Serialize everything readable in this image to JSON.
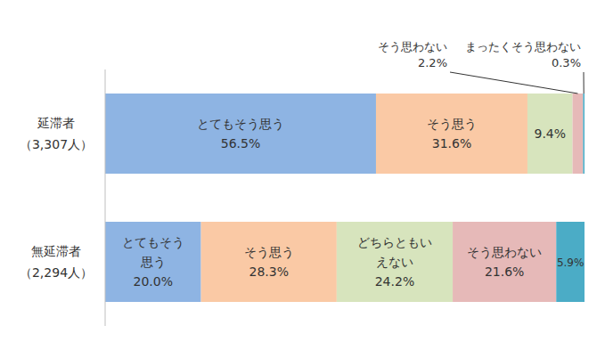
{
  "chart_data": {
    "type": "bar",
    "orientation": "horizontal",
    "stacked": true,
    "data_labels": true,
    "tick_labels": "y",
    "grid": false,
    "xlim": [
      0,
      100
    ],
    "categories": [
      "延滞者（3,307人）",
      "無延滞者（2,294人）"
    ],
    "series": [
      {
        "name": "とてもそう思う",
        "color": "#8EB4E3",
        "values": [
          56.5,
          20.0
        ],
        "value_labels": [
          "56.5%",
          "20.0%"
        ]
      },
      {
        "name": "そう思う",
        "color": "#FAC9A5",
        "values": [
          31.6,
          28.3
        ],
        "value_labels": [
          "31.6%",
          "28.3%"
        ]
      },
      {
        "name": "どちらともいえない",
        "color": "#D7E4BD",
        "values": [
          9.4,
          24.2
        ],
        "value_labels": [
          "9.4%",
          "24.2%"
        ]
      },
      {
        "name": "そう思わない",
        "color": "#E6B9B8",
        "values": [
          2.2,
          21.6
        ],
        "value_labels": [
          "2.2%",
          "21.6%"
        ]
      },
      {
        "name": "まったくそう思わない",
        "color": "#4BACC6",
        "values": [
          0.3,
          5.9
        ],
        "value_labels": [
          "0.3%",
          "5.9%"
        ]
      }
    ]
  }
}
